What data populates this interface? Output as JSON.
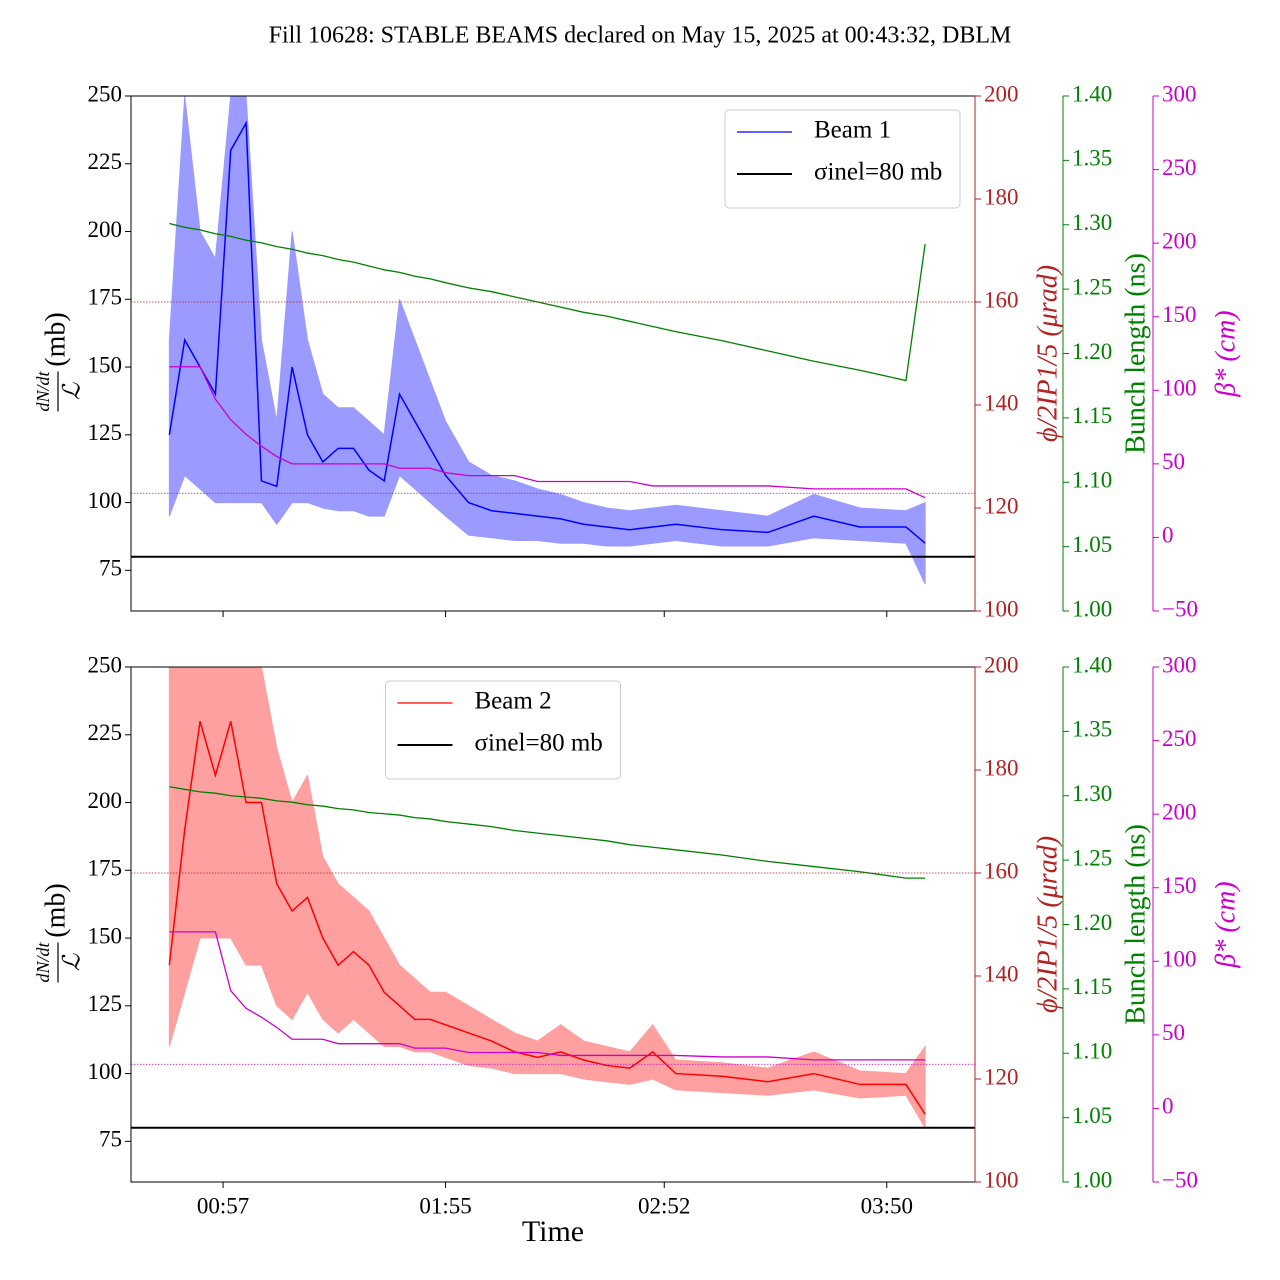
{
  "title": "Fill 10628: STABLE BEAMS declared on May 15, 2025 at 00:43:32, DBLM",
  "chart_data": [
    {
      "type": "line",
      "legend": "upper right",
      "x": [
        "00:43",
        "00:47",
        "00:51",
        "00:55",
        "00:59",
        "01:03",
        "01:07",
        "01:11",
        "01:15",
        "01:19",
        "01:23",
        "01:27",
        "01:31",
        "01:35",
        "01:39",
        "01:43",
        "01:47",
        "01:51",
        "01:55",
        "02:01",
        "02:07",
        "02:13",
        "02:19",
        "02:25",
        "02:31",
        "02:37",
        "02:43",
        "02:49",
        "02:55",
        "03:07",
        "03:19",
        "03:31",
        "03:43",
        "03:55",
        "04:00"
      ],
      "xlim": [
        "00:33",
        "04:13"
      ],
      "ylabel": {
        "numerator": "dN/dt",
        "denominator": "ℒ",
        "unit": "(mb)"
      },
      "ylim": [
        60,
        250
      ],
      "yticks": [
        75,
        100,
        125,
        150,
        175,
        200,
        225,
        250
      ],
      "y2label": "ϕ/2IP1/5 (μrad)",
      "y2lim": [
        100,
        200
      ],
      "y2ticks": [
        100,
        120,
        140,
        160,
        180,
        200
      ],
      "y3label": "Bunch length (ns)",
      "y3lim": [
        1,
        1.4
      ],
      "y3ticks": [
        {
          "value": 1,
          "label": "1.00"
        },
        {
          "value": 1.05,
          "label": "1.05"
        },
        {
          "value": 1.1,
          "label": "1.10"
        },
        {
          "value": 1.15,
          "label": "1.15"
        },
        {
          "value": 1.2,
          "label": "1.20"
        },
        {
          "value": 1.25,
          "label": "1.25"
        },
        {
          "value": 1.3,
          "label": "1.30"
        },
        {
          "value": 1.35,
          "label": "1.35"
        },
        {
          "value": 1.4,
          "label": "1.40"
        }
      ],
      "y4label": "β* (cm)",
      "y4lim": [
        -50,
        300
      ],
      "y4ticks": [
        {
          "value": -50,
          "label": "−50"
        },
        0,
        50,
        100,
        150,
        200,
        250,
        300
      ],
      "series": [
        {
          "name": "Beam 1",
          "color": "#0000ff",
          "band_color": "#9a9aff",
          "values": [
            125,
            160,
            150,
            140,
            230,
            240,
            108,
            106,
            150,
            125,
            115,
            120,
            120,
            112,
            108,
            140,
            130,
            120,
            110,
            100,
            97,
            96,
            95,
            94,
            92,
            91,
            90,
            91,
            92,
            90,
            89,
            95,
            91,
            91,
            85
          ],
          "band_upper": [
            160,
            250,
            200,
            190,
            250,
            250,
            160,
            130,
            200,
            160,
            140,
            135,
            135,
            130,
            125,
            175,
            160,
            145,
            130,
            115,
            110,
            108,
            105,
            103,
            100,
            98,
            97,
            98,
            99,
            97,
            95,
            103,
            98,
            97,
            100
          ],
          "band_lower": [
            95,
            110,
            105,
            100,
            100,
            100,
            100,
            92,
            100,
            100,
            98,
            97,
            97,
            95,
            95,
            110,
            105,
            100,
            95,
            88,
            87,
            86,
            86,
            85,
            85,
            84,
            84,
            85,
            86,
            84,
            84,
            87,
            86,
            85,
            70
          ]
        },
        {
          "name": "σinel=80 mb",
          "color": "#000000",
          "hline": 80
        },
        {
          "color": "#008000",
          "axis": "y3",
          "values": [
            1.301,
            1.298,
            1.296,
            1.293,
            1.291,
            1.288,
            1.286,
            1.283,
            1.281,
            1.278,
            1.276,
            1.273,
            1.271,
            1.268,
            1.265,
            1.263,
            1.26,
            1.258,
            1.255,
            1.251,
            1.248,
            1.244,
            1.24,
            1.236,
            1.232,
            1.229,
            1.225,
            1.221,
            1.217,
            1.21,
            1.202,
            1.194,
            1.187,
            1.179,
            1.285
          ]
        },
        {
          "color": "#cc00cc",
          "axis": "y4",
          "values": [
            116,
            116,
            116,
            94,
            80,
            70,
            62,
            55,
            50,
            50,
            50,
            50,
            50,
            50,
            50,
            47,
            47,
            47,
            44,
            42,
            42,
            42,
            38,
            38,
            38,
            38,
            38,
            35,
            35,
            35,
            35,
            33,
            33,
            33,
            27
          ]
        },
        {
          "color": "#b22222",
          "axis": "y2",
          "hline": 160,
          "dotted": true
        },
        {
          "color": "#cc00cc",
          "axis": "y4",
          "hline": 30,
          "dotted": true
        }
      ]
    },
    {
      "type": "line",
      "legend": "upper center",
      "x": [
        "00:43",
        "00:47",
        "00:51",
        "00:55",
        "00:59",
        "01:03",
        "01:07",
        "01:11",
        "01:15",
        "01:19",
        "01:23",
        "01:27",
        "01:31",
        "01:35",
        "01:39",
        "01:43",
        "01:47",
        "01:51",
        "01:55",
        "02:01",
        "02:07",
        "02:13",
        "02:19",
        "02:25",
        "02:31",
        "02:37",
        "02:43",
        "02:49",
        "02:55",
        "03:07",
        "03:19",
        "03:31",
        "03:43",
        "03:55",
        "04:00"
      ],
      "xlim": [
        "00:33",
        "04:13"
      ],
      "xticks": [
        "00:57",
        "01:55",
        "02:52",
        "03:50"
      ],
      "xlabel": "Time",
      "ylabel": {
        "numerator": "dN/dt",
        "denominator": "ℒ",
        "unit": "(mb)"
      },
      "ylim": [
        60,
        250
      ],
      "yticks": [
        75,
        100,
        125,
        150,
        175,
        200,
        225,
        250
      ],
      "y2label": "ϕ/2IP1/5 (μrad)",
      "y2lim": [
        100,
        200
      ],
      "y2ticks": [
        100,
        120,
        140,
        160,
        180,
        200
      ],
      "y3label": "Bunch length (ns)",
      "y3lim": [
        1,
        1.4
      ],
      "y3ticks": [
        {
          "value": 1,
          "label": "1.00"
        },
        {
          "value": 1.05,
          "label": "1.05"
        },
        {
          "value": 1.1,
          "label": "1.10"
        },
        {
          "value": 1.15,
          "label": "1.15"
        },
        {
          "value": 1.2,
          "label": "1.20"
        },
        {
          "value": 1.25,
          "label": "1.25"
        },
        {
          "value": 1.3,
          "label": "1.30"
        },
        {
          "value": 1.35,
          "label": "1.35"
        },
        {
          "value": 1.4,
          "label": "1.40"
        }
      ],
      "y4label": "β* (cm)",
      "y4lim": [
        -50,
        300
      ],
      "y4ticks": [
        {
          "value": -50,
          "label": "−50"
        },
        0,
        50,
        100,
        150,
        200,
        250,
        300
      ],
      "series": [
        {
          "name": "Beam 2",
          "color": "#ff0000",
          "band_color": "#ffa0a0",
          "values": [
            140,
            190,
            230,
            210,
            230,
            200,
            200,
            170,
            160,
            165,
            150,
            140,
            145,
            140,
            130,
            125,
            120,
            120,
            118,
            115,
            112,
            108,
            106,
            108,
            105,
            103,
            102,
            108,
            100,
            99,
            97,
            100,
            96,
            96,
            85
          ],
          "band_upper": [
            250,
            250,
            250,
            250,
            250,
            250,
            250,
            220,
            200,
            210,
            180,
            170,
            165,
            160,
            150,
            140,
            135,
            130,
            130,
            125,
            120,
            115,
            112,
            118,
            112,
            110,
            108,
            118,
            105,
            104,
            102,
            108,
            101,
            100,
            110
          ],
          "band_lower": [
            110,
            130,
            150,
            150,
            150,
            140,
            140,
            125,
            120,
            130,
            120,
            115,
            120,
            115,
            110,
            110,
            108,
            108,
            106,
            103,
            102,
            100,
            100,
            100,
            98,
            97,
            96,
            98,
            94,
            93,
            92,
            94,
            91,
            92,
            80
          ]
        },
        {
          "name": "σinel=80 mb",
          "color": "#000000",
          "hline": 80
        },
        {
          "color": "#008000",
          "axis": "y3",
          "values": [
            1.307,
            1.305,
            1.303,
            1.302,
            1.3,
            1.299,
            1.298,
            1.296,
            1.295,
            1.293,
            1.292,
            1.29,
            1.289,
            1.287,
            1.286,
            1.285,
            1.283,
            1.282,
            1.28,
            1.278,
            1.276,
            1.273,
            1.271,
            1.269,
            1.267,
            1.265,
            1.262,
            1.26,
            1.258,
            1.254,
            1.249,
            1.245,
            1.241,
            1.236,
            1.236
          ]
        },
        {
          "color": "#cc00cc",
          "axis": "y4",
          "values": [
            120,
            120,
            120,
            120,
            80,
            68,
            62,
            55,
            47,
            47,
            47,
            44,
            44,
            44,
            44,
            44,
            41,
            41,
            41,
            38,
            38,
            38,
            38,
            36,
            36,
            36,
            36,
            36,
            36,
            35,
            35,
            33,
            33,
            33,
            33
          ]
        },
        {
          "color": "#b22222",
          "axis": "y2",
          "hline": 160,
          "dotted": true
        },
        {
          "color": "#cc00cc",
          "axis": "y4",
          "hline": 30,
          "dotted": true
        }
      ]
    }
  ]
}
